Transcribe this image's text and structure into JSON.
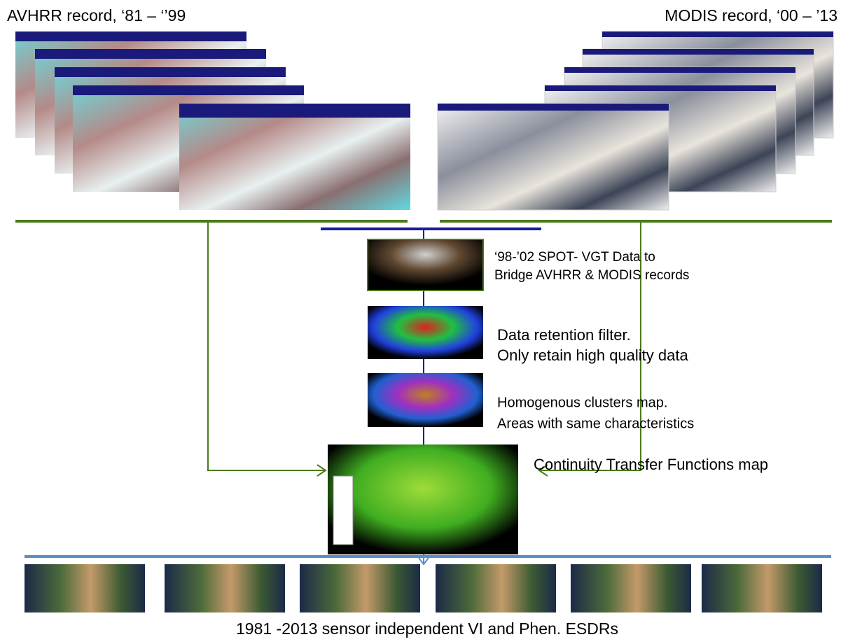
{
  "header": {
    "left_title": "AVHRR record, ‘81 – ‘’99",
    "right_title": "MODIS record, ‘00 – ’13"
  },
  "steps": [
    {
      "lines": [
        "‘98-’02 SPOT- VGT Data to",
        "Bridge  AVHRR & MODIS records"
      ]
    },
    {
      "lines": [
        "Data retention filter.",
        "Only retain high quality data"
      ]
    },
    {
      "lines": [
        "Homogenous clusters map.",
        "Areas with same characteristics"
      ]
    },
    {
      "lines": [
        "Continuity  Transfer Functions map"
      ]
    }
  ],
  "footer": {
    "caption": "1981 -2013 sensor independent VI and Phen. ESDRs"
  }
}
